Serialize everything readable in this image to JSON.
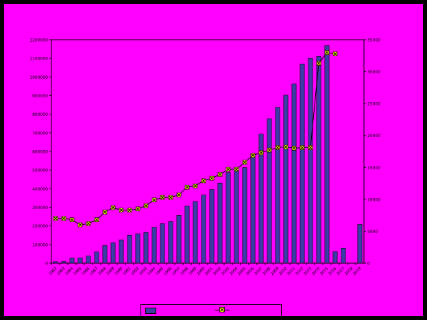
{
  "chart_data": {
    "type": "bar",
    "title": "",
    "categories": [
      "1982",
      "1983",
      "1984",
      "1985",
      "1986",
      "1987",
      "1988",
      "1989",
      "1990",
      "1991",
      "1992",
      "1993",
      "1994",
      "1995",
      "1996",
      "1997",
      "1998",
      "1999",
      "2000",
      "2001",
      "2002",
      "2003",
      "2004",
      "2005",
      "2006",
      "2007",
      "2008",
      "2009",
      "2010",
      "2011",
      "2012",
      "2013",
      "2014",
      "2015",
      "2016",
      "2017",
      "2018",
      "2019"
    ],
    "series": [
      {
        "name": "",
        "kind": "bar",
        "axis": "left",
        "color": "#3c3ca8",
        "values": [
          8000,
          9000,
          27000,
          28000,
          38000,
          60000,
          95000,
          110000,
          125000,
          150000,
          158000,
          165000,
          193000,
          212000,
          223000,
          256000,
          306000,
          330000,
          366000,
          395000,
          430000,
          487000,
          502000,
          513000,
          582000,
          693000,
          776000,
          837000,
          902000,
          963000,
          1070000,
          1100000,
          1110000,
          1168000,
          62000,
          80000,
          0,
          208000
        ]
      },
      {
        "name": "",
        "kind": "line",
        "axis": "right",
        "color": "#000000",
        "marker_color": "#ffff00",
        "values": [
          7000,
          7000,
          6800,
          6000,
          6200,
          6800,
          8000,
          8700,
          8300,
          8300,
          8500,
          9000,
          9900,
          10300,
          10300,
          10700,
          11900,
          12100,
          12900,
          13300,
          13900,
          14700,
          14700,
          15800,
          16900,
          17300,
          17700,
          18100,
          18200,
          18000,
          18100,
          18100,
          31300,
          33000,
          32800,
          null,
          null,
          null
        ]
      }
    ],
    "y_left": {
      "min": 0,
      "max": 1200000,
      "step": 100000,
      "label": ""
    },
    "y_right": {
      "min": 0,
      "max": 35000,
      "step": 5000,
      "label": ""
    },
    "tick_labels_left": [
      "0",
      "100000",
      "200000",
      "300000",
      "400000",
      "500000",
      "600000",
      "700000",
      "800000",
      "900000",
      "1000000",
      "1100000",
      "1200000"
    ],
    "tick_labels_right": [
      "0",
      "5000",
      "10000",
      "15000",
      "20000",
      "25000",
      "30000",
      "35000"
    ],
    "legend": {
      "position": "bottom",
      "items": [
        "",
        ""
      ]
    },
    "grid": false
  }
}
